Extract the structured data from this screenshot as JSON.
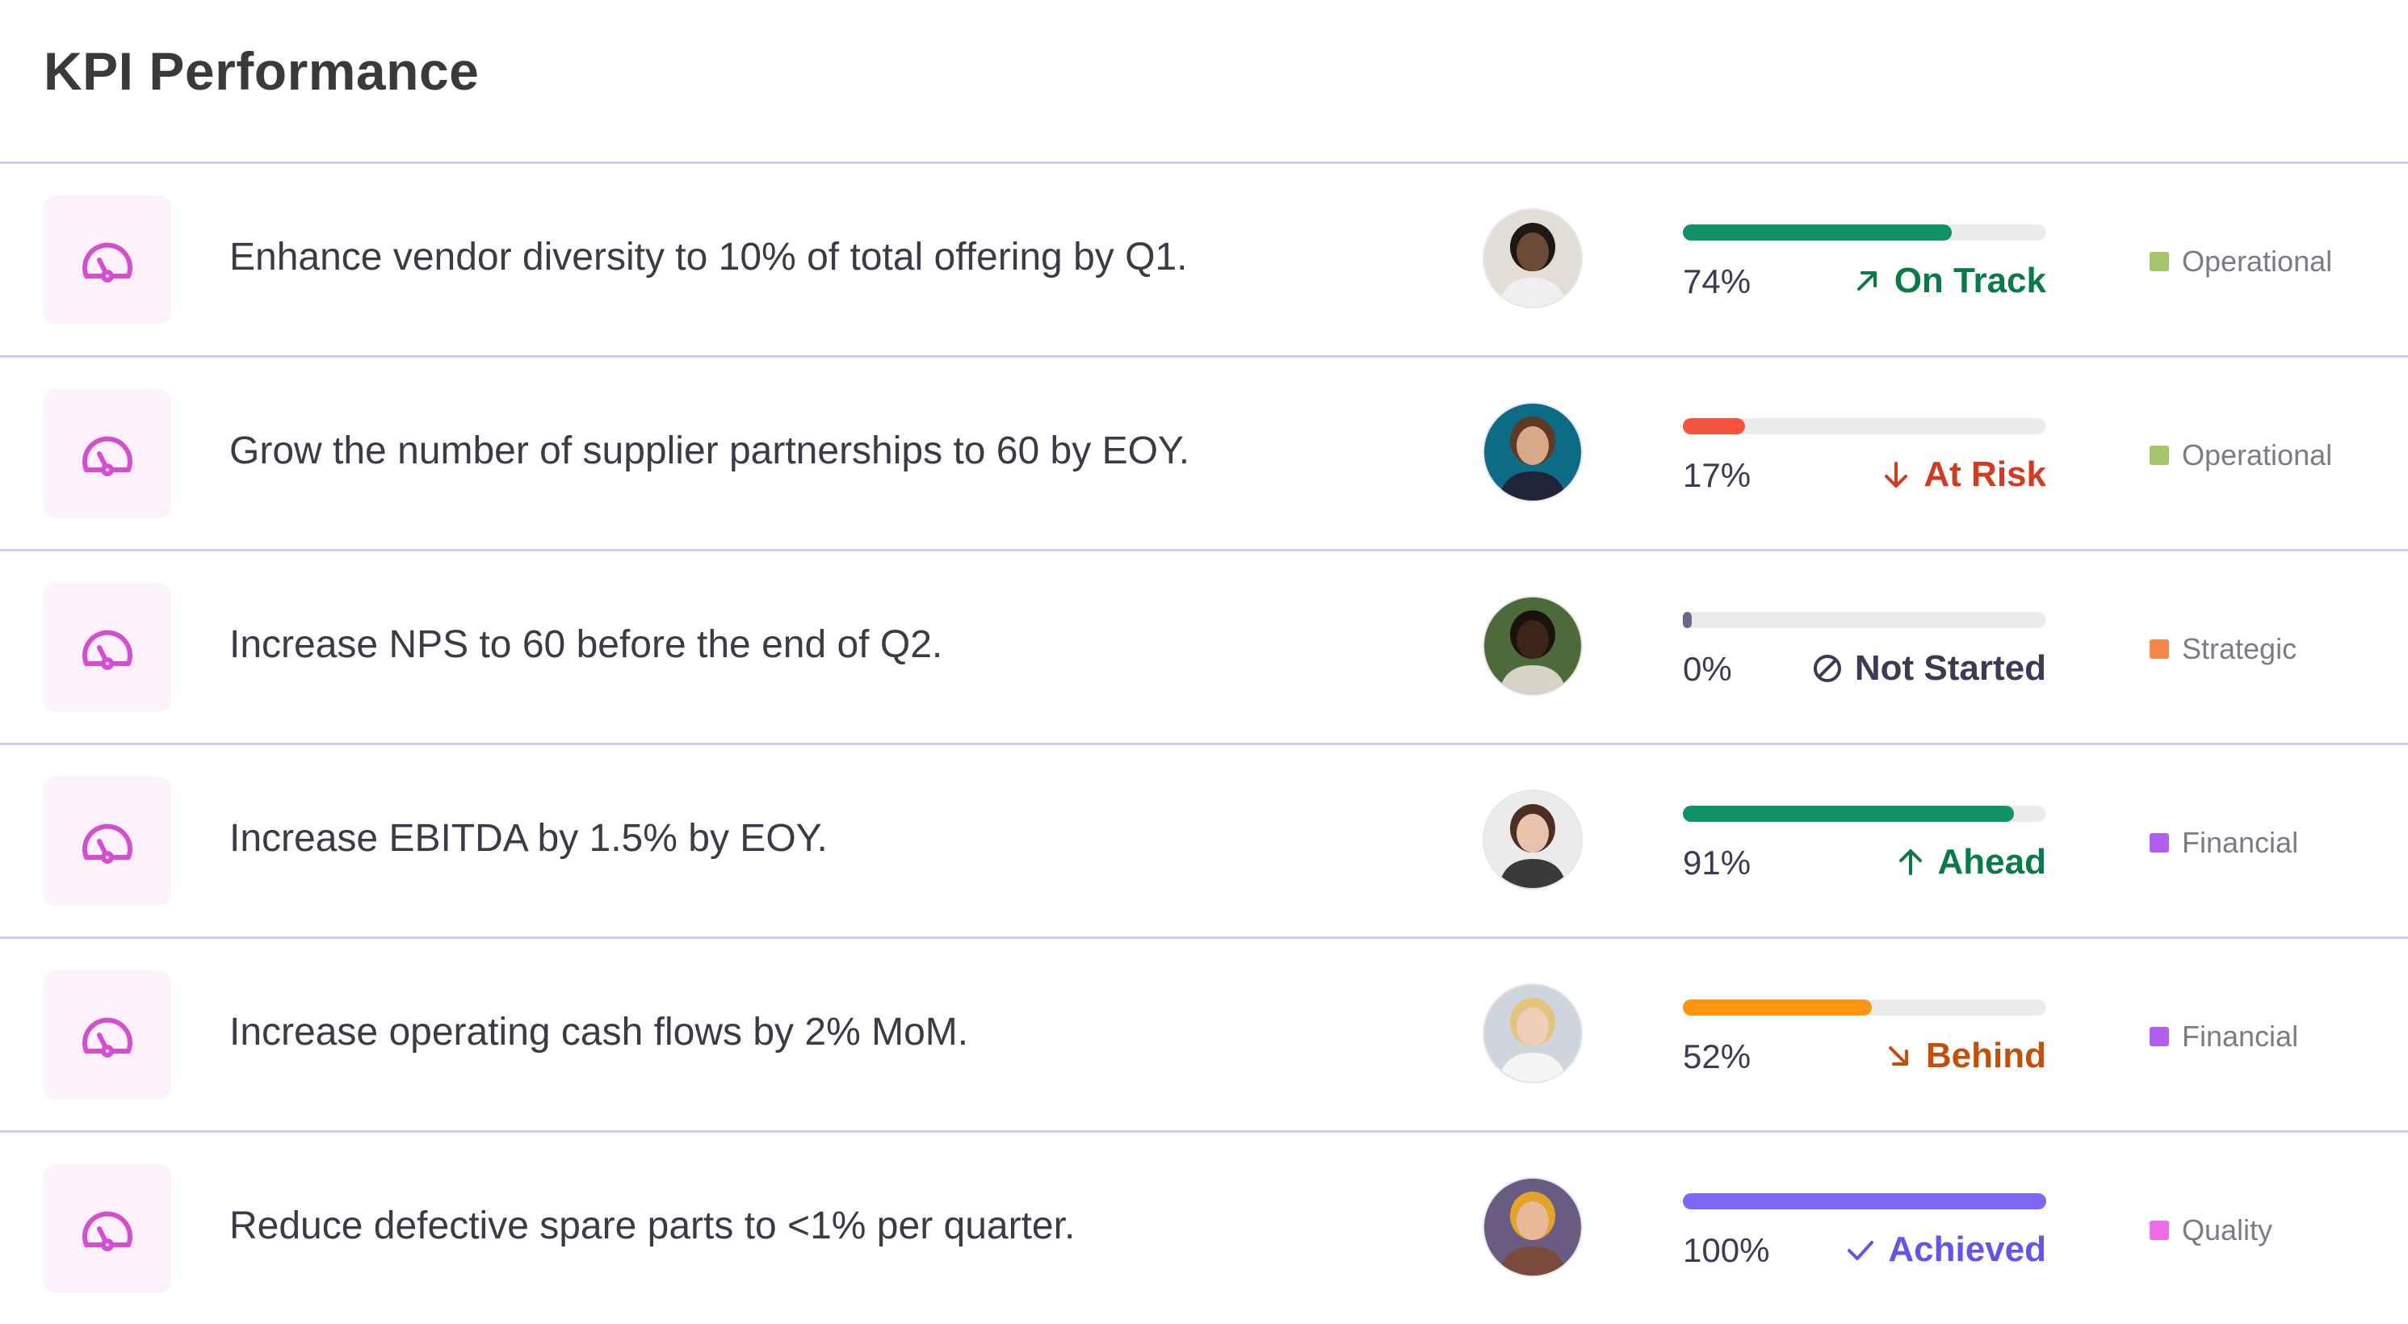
{
  "page": {
    "title": "KPI Performance"
  },
  "kpis": [
    {
      "text": "Enhance vendor diversity to 10% of total offering by Q1.",
      "progress": 74,
      "percent_label": "74%",
      "status": "On Track",
      "status_color": "#0a7a48",
      "status_icon": "arrow-up-right-icon",
      "bar_color": "#119463",
      "category": "Operational",
      "category_color": "#a6c56a",
      "avatar_bg": "#e2ddd5",
      "avatar_skin": "#6b4a36",
      "avatar_hair": "#1d1715",
      "avatar_shirt": "#efefef"
    },
    {
      "text": "Grow the number of supplier partnerships to 60 by EOY.",
      "progress": 17,
      "percent_label": "17%",
      "status": "At Risk",
      "status_color": "#d33a22",
      "status_icon": "arrow-down-icon",
      "bar_color": "#f5543e",
      "category": "Operational",
      "category_color": "#a6c56a",
      "avatar_bg": "#0d6b86",
      "avatar_skin": "#d9a888",
      "avatar_hair": "#5e3a24",
      "avatar_shirt": "#1f2438"
    },
    {
      "text": "Increase NPS to 60 before the end of Q2.",
      "progress": 0,
      "percent_label": "0%",
      "status": "Not Started",
      "status_color": "#3b3b55",
      "status_icon": "not-started-icon",
      "bar_color": "#6a6a86",
      "category": "Strategic",
      "category_color": "#f7874d",
      "avatar_bg": "#4d6a3a",
      "avatar_skin": "#3c2418",
      "avatar_hair": "#1a120d",
      "avatar_shirt": "#d8d3c7"
    },
    {
      "text": "Increase EBITDA by 1.5% by EOY.",
      "progress": 91,
      "percent_label": "91%",
      "status": "Ahead",
      "status_color": "#0a7a48",
      "status_icon": "arrow-up-icon",
      "bar_color": "#119463",
      "category": "Financial",
      "category_color": "#b45ef0",
      "avatar_bg": "#ecebe9",
      "avatar_skin": "#e8c2ac",
      "avatar_hair": "#4c2f22",
      "avatar_shirt": "#3a3a3a"
    },
    {
      "text": "Increase operating cash flows by 2% MoM.",
      "progress": 52,
      "percent_label": "52%",
      "status": "Behind",
      "status_color": "#c44f0a",
      "status_icon": "arrow-down-right-icon",
      "bar_color": "#ff9312",
      "category": "Financial",
      "category_color": "#b45ef0",
      "avatar_bg": "#cfd5dc",
      "avatar_skin": "#f0cdb8",
      "avatar_hair": "#e4c47d",
      "avatar_shirt": "#f4f4f4"
    },
    {
      "text": "Reduce defective spare parts to <1% per quarter.",
      "progress": 100,
      "percent_label": "100%",
      "status": "Achieved",
      "status_color": "#6355ec",
      "status_icon": "checkmark-icon",
      "bar_color": "#7b68f5",
      "category": "Quality",
      "category_color": "#f06ce8",
      "avatar_bg": "#6a5b82",
      "avatar_skin": "#e7b99a",
      "avatar_hair": "#e3a428",
      "avatar_shirt": "#7a4a3a"
    }
  ]
}
